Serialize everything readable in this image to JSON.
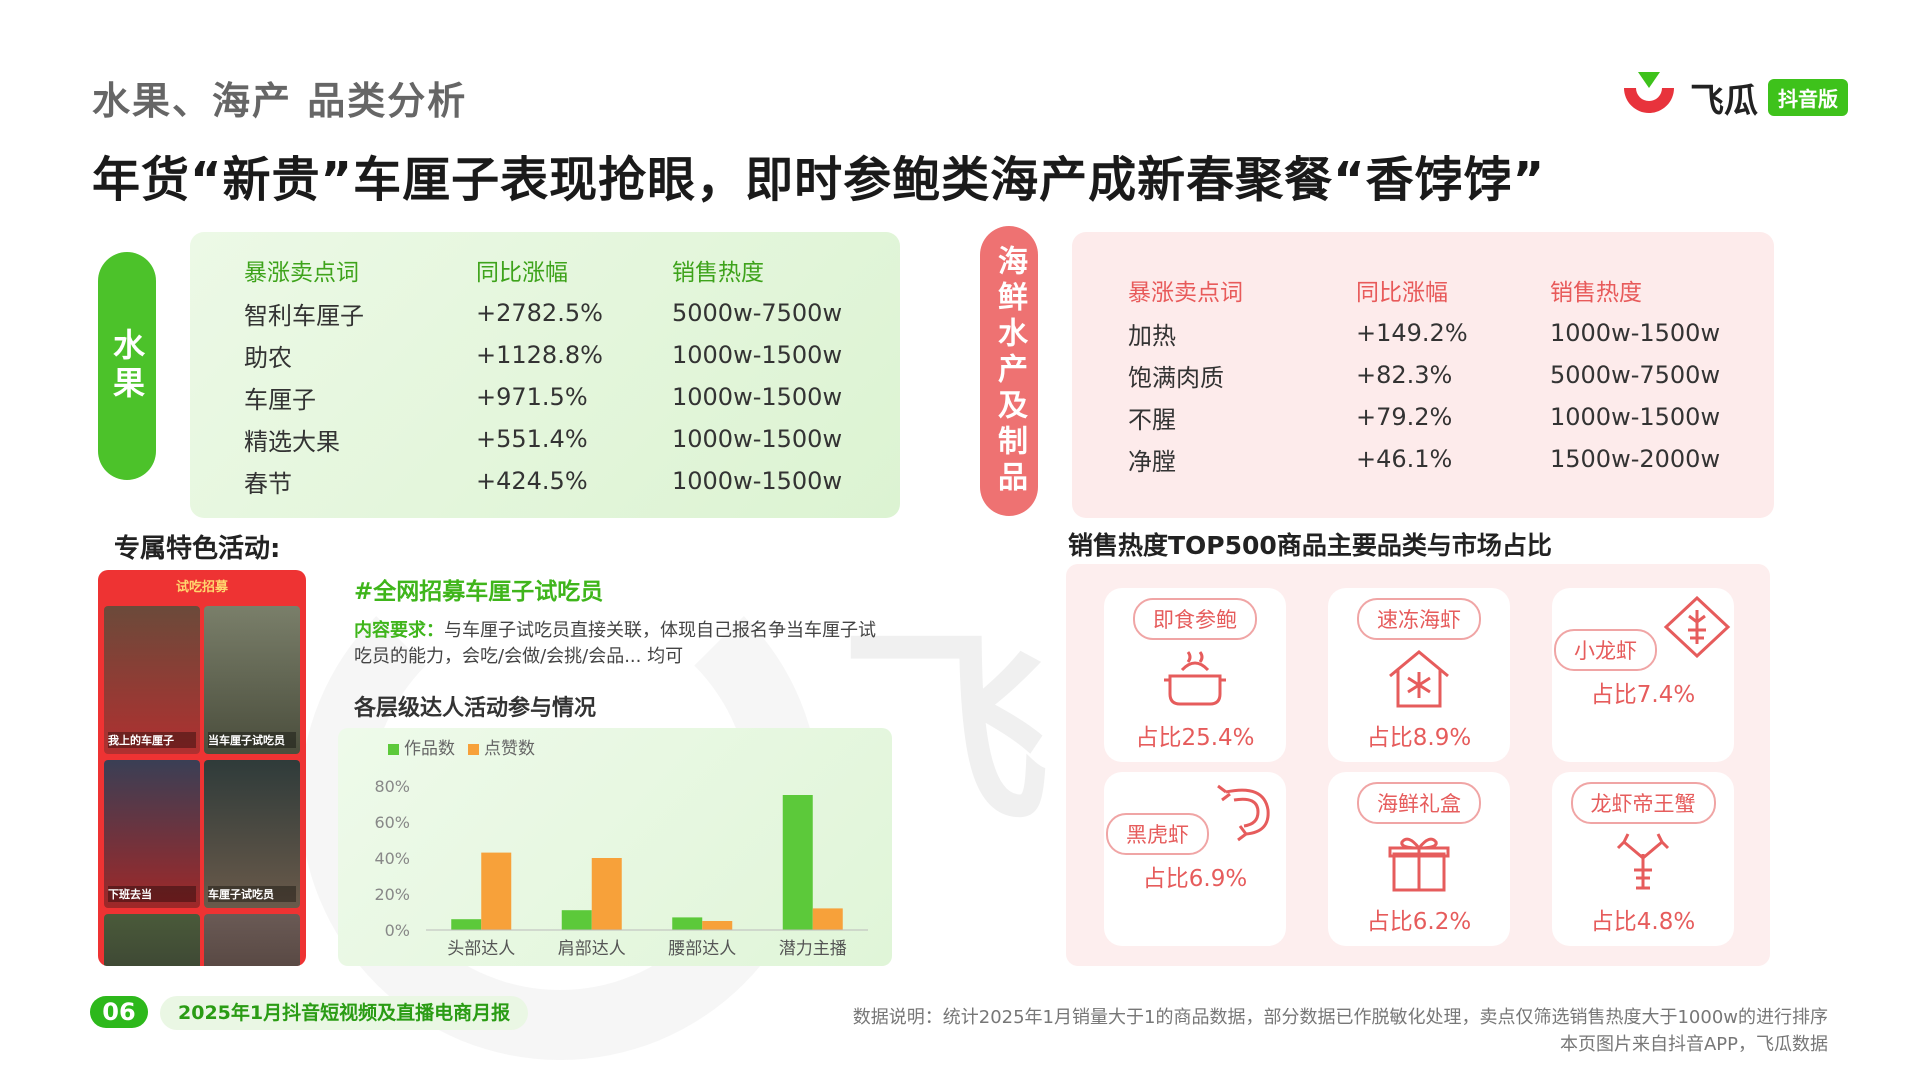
{
  "header": {
    "section": "水果、海产 品类分析",
    "headline": "年货“新贵”车厘子表现抢眼，即时参鲍类海产成新春聚餐“香饽饽”",
    "logo_text": "飞瓜",
    "logo_badge": "抖音版"
  },
  "watermark": "飞瓜数据",
  "fruit": {
    "label": "水果",
    "columns": [
      "暴涨卖点词",
      "同比涨幅",
      "销售热度"
    ],
    "rows": [
      [
        "智利车厘子",
        "+2782.5%",
        "5000w-7500w"
      ],
      [
        "助农",
        "+1128.8%",
        "1000w-1500w"
      ],
      [
        "车厘子",
        "+971.5%",
        "1000w-1500w"
      ],
      [
        "精选大果",
        "+551.4%",
        "1000w-1500w"
      ],
      [
        "春节",
        "+424.5%",
        "1000w-1500w"
      ]
    ]
  },
  "seafood": {
    "label": "海鲜水产及制品",
    "columns": [
      "暴涨卖点词",
      "同比涨幅",
      "销售热度"
    ],
    "rows": [
      [
        "加热",
        "+149.2%",
        "1000w-1500w"
      ],
      [
        "饱满肉质",
        "+82.3%",
        "5000w-7500w"
      ],
      [
        "不腥",
        "+79.2%",
        "1000w-1500w"
      ],
      [
        "净膛",
        "+46.1%",
        "1500w-2000w"
      ]
    ]
  },
  "activity": {
    "title": "专属特色活动:",
    "phone_header": "试吃招募",
    "thumbs": [
      "我上的车厘子",
      "当车厘子试吃员",
      "下班去当",
      "车厘子试吃员",
      "",
      ""
    ],
    "hashtag": "#全网招募车厘子试吃员",
    "req_label": "内容要求：",
    "req_text": "与车厘子试吃员直接关联，体现自己报名争当车厘子试吃员的能力，会吃/会做/会挑/会品... 均可",
    "chart_title": "各层级达人活动参与情况"
  },
  "chart_data": {
    "type": "bar",
    "categories": [
      "头部达人",
      "肩部达人",
      "腰部达人",
      "潜力主播"
    ],
    "series": [
      {
        "name": "作品数",
        "color": "#5cc93a",
        "values": [
          6,
          11,
          7,
          75
        ]
      },
      {
        "name": "点赞数",
        "color": "#f7a13a",
        "values": [
          43,
          40,
          5,
          12
        ]
      }
    ],
    "yticks": [
      "0%",
      "20%",
      "40%",
      "60%",
      "80%"
    ],
    "ylim": [
      0,
      80
    ],
    "legend": "top-left"
  },
  "top500": {
    "title": "销售热度TOP500商品主要品类与市场占比",
    "items": [
      {
        "name": "即食参鲍",
        "share": "占比25.4%",
        "icon": "pot-icon"
      },
      {
        "name": "速冻海虾",
        "share": "占比8.9%",
        "icon": "snowflake-house-icon"
      },
      {
        "name": "小龙虾",
        "share": "占比7.4%",
        "icon": "crayfish-icon"
      },
      {
        "name": "黑虎虾",
        "share": "占比6.9%",
        "icon": "shrimp-icon"
      },
      {
        "name": "海鲜礼盒",
        "share": "占比6.2%",
        "icon": "gift-box-icon"
      },
      {
        "name": "龙虾帝王蟹",
        "share": "占比4.8%",
        "icon": "lobster-icon"
      }
    ]
  },
  "footer": {
    "page": "06",
    "report": "2025年1月抖音短视频及直播电商月报",
    "note1": "数据说明：统计2025年1月销量大于1的商品数据，部分数据已作脱敏化处理，卖点仅筛选销售热度大于1000w的进行排序",
    "note2": "本页图片来自抖音APP，飞瓜数据"
  }
}
